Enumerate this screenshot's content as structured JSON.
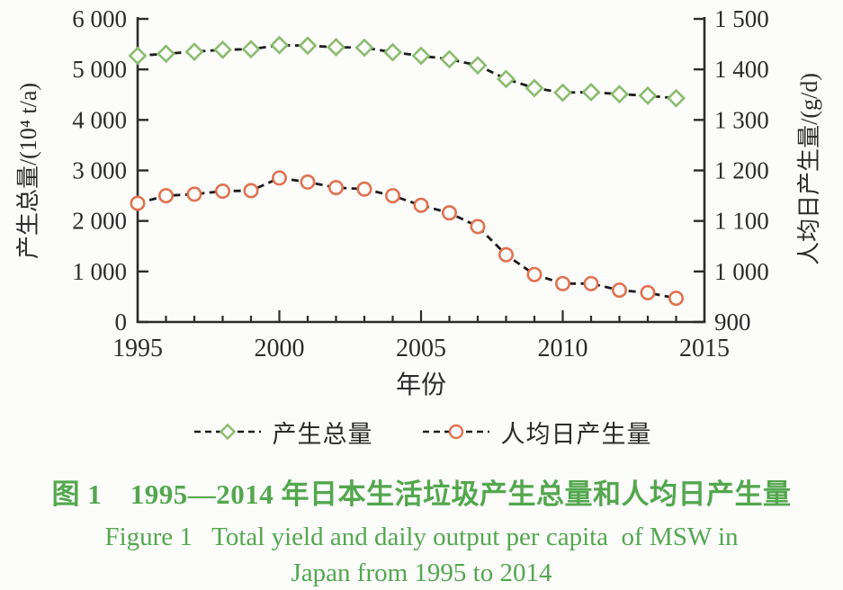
{
  "figure": {
    "background": "#fcfcfb",
    "text_color": "#2b2b2b",
    "caption_color": "#53a74e"
  },
  "chart_data": {
    "type": "line",
    "line_style": "dashed",
    "line_color": "#1c1c1c",
    "grid": false,
    "xlabel": "年份",
    "x": [
      1995,
      1996,
      1997,
      1998,
      1999,
      2000,
      2001,
      2002,
      2003,
      2004,
      2005,
      2006,
      2007,
      2008,
      2009,
      2010,
      2011,
      2012,
      2013,
      2014
    ],
    "x_range": [
      1995,
      2015
    ],
    "x_major_ticks": [
      {
        "v": 1995,
        "label": "1995"
      },
      {
        "v": 2000,
        "label": "2000"
      },
      {
        "v": 2005,
        "label": "2005"
      },
      {
        "v": 2010,
        "label": "2010"
      },
      {
        "v": 2015,
        "label": "2015"
      }
    ],
    "axes": {
      "left": {
        "label": "产生总量/(10⁴ t/a)",
        "range": [
          0,
          6000
        ],
        "ticks": [
          {
            "v": 6000,
            "label": "6 000"
          },
          {
            "v": 5000,
            "label": "5 000"
          },
          {
            "v": 4000,
            "label": "4 000"
          },
          {
            "v": 3000,
            "label": "3 000"
          },
          {
            "v": 2000,
            "label": "2 000"
          },
          {
            "v": 1000,
            "label": "1 000"
          },
          {
            "v": 0,
            "label": "0"
          }
        ]
      },
      "right": {
        "label": "人均日产生量/(g/d)",
        "range": [
          900,
          1500
        ],
        "ticks": [
          {
            "v": 1500,
            "label": "1 500"
          },
          {
            "v": 1400,
            "label": "1 400"
          },
          {
            "v": 1300,
            "label": "1 300"
          },
          {
            "v": 1200,
            "label": "1 200"
          },
          {
            "v": 1100,
            "label": "1 100"
          },
          {
            "v": 1000,
            "label": "1 000"
          },
          {
            "v": 900,
            "label": "900"
          }
        ]
      }
    },
    "series": [
      {
        "key": "total-yield",
        "name": "产生总量",
        "axis": "left",
        "marker": "diamond",
        "color": "#8abc6e",
        "values": [
          5270,
          5310,
          5350,
          5390,
          5400,
          5480,
          5470,
          5440,
          5430,
          5340,
          5270,
          5200,
          5080,
          4810,
          4630,
          4540,
          4550,
          4510,
          4480,
          4430
        ]
      },
      {
        "key": "per-capita",
        "name": "人均日产生量",
        "axis": "right",
        "marker": "circle",
        "color": "#e1714e",
        "values": [
          1135,
          1150,
          1153,
          1159,
          1160,
          1185,
          1177,
          1166,
          1163,
          1150,
          1131,
          1116,
          1089,
          1033,
          994,
          976,
          976,
          963,
          958,
          947
        ]
      }
    ]
  },
  "captions": {
    "chinese": "图 1　1995—2014 年日本生活垃圾产生总量和人均日产生量",
    "english_line1": "Figure 1   Total yield and daily output per capita  of MSW in",
    "english_line2": "Japan from 1995 to 2014"
  }
}
